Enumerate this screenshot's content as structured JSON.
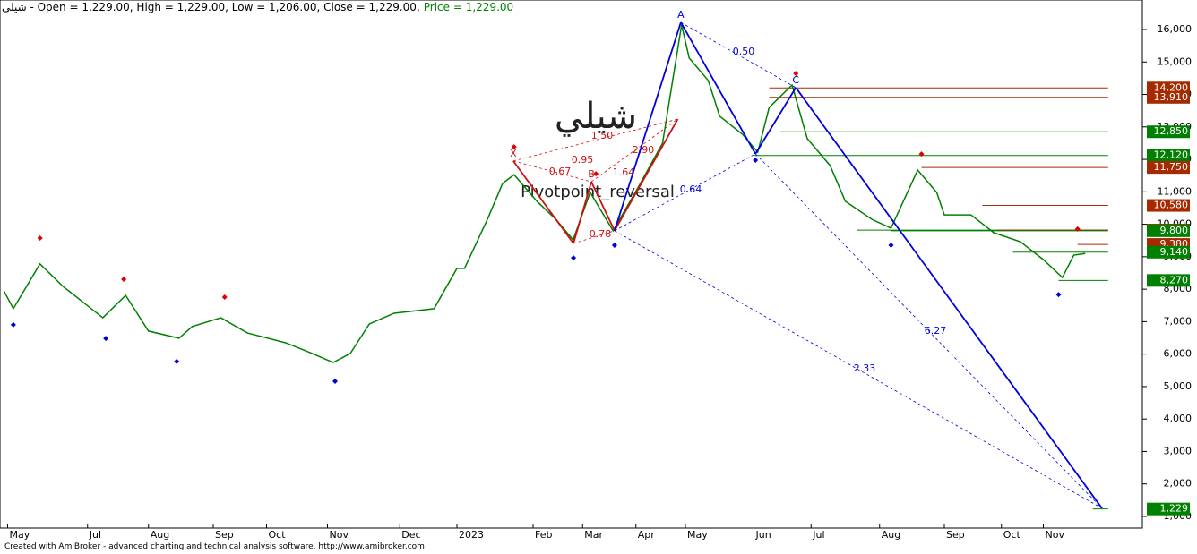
{
  "chart_data": {
    "type": "line",
    "title": "شيلي - Open = 1,229.00, High = 1,229.00, Low = 1,206.00, Close = 1,229.00,",
    "subtitle": "Price = 1,229.00",
    "watermark": "شيلي",
    "pattern_name": "Pivotpoint_reversal",
    "footer": "Created with AmiBroker - advanced charting and technical analysis software. http://www.amibroker.com",
    "xlim": [
      0,
      300
    ],
    "ylim": [
      641,
      16910
    ],
    "yticks": [
      {
        "value": 1000,
        "label": "1,000"
      },
      {
        "value": 2000,
        "label": "2,000"
      },
      {
        "value": 3000,
        "label": "3,000"
      },
      {
        "value": 4000,
        "label": "4,000"
      },
      {
        "value": 5000,
        "label": "5,000"
      },
      {
        "value": 6000,
        "label": "6,000"
      },
      {
        "value": 7000,
        "label": "7,000"
      },
      {
        "value": 8000,
        "label": "8,000"
      },
      {
        "value": 9000,
        "label": "9,000"
      },
      {
        "value": 10000,
        "label": "10,000"
      },
      {
        "value": 11000,
        "label": "11,000"
      },
      {
        "value": 12000,
        "label": "12,000"
      },
      {
        "value": 13000,
        "label": "13,000"
      },
      {
        "value": 14000,
        "label": "14,000"
      },
      {
        "value": 15000,
        "label": "15,000"
      },
      {
        "value": 16000,
        "label": "16,000"
      }
    ],
    "xticks": [
      {
        "value": 2,
        "label": "May"
      },
      {
        "value": 23,
        "label": "Jul"
      },
      {
        "value": 39,
        "label": "Aug"
      },
      {
        "value": 56,
        "label": "Sep"
      },
      {
        "value": 70,
        "label": "Oct"
      },
      {
        "value": 86,
        "label": "Nov"
      },
      {
        "value": 105,
        "label": "Dec"
      },
      {
        "value": 120,
        "label": "2023"
      },
      {
        "value": 140,
        "label": "Feb"
      },
      {
        "value": 153,
        "label": "Mar"
      },
      {
        "value": 167,
        "label": "Apr"
      },
      {
        "value": 180,
        "label": "May"
      },
      {
        "value": 198,
        "label": "Jun"
      },
      {
        "value": 213,
        "label": "Jul"
      },
      {
        "value": 231,
        "label": "Aug"
      },
      {
        "value": 248,
        "label": "Sep"
      },
      {
        "value": 263,
        "label": "Oct"
      },
      {
        "value": 274,
        "label": "Nov"
      }
    ],
    "series": [
      {
        "name": "Price",
        "color": "#008000",
        "x": [
          1,
          3.5,
          10.5,
          16.5,
          27,
          33,
          39,
          47,
          50.5,
          58,
          65,
          75,
          82,
          87.5,
          92,
          97,
          103.5,
          114,
          120,
          122,
          128,
          132,
          135,
          141,
          146,
          150.5,
          155,
          161,
          167.5,
          174,
          179,
          181,
          186,
          189,
          195,
          199,
          202,
          208,
          212,
          218,
          222,
          229,
          234,
          241,
          246,
          248,
          255,
          261,
          268,
          274,
          279,
          282,
          285
        ],
        "values": [
          7950,
          7400,
          8780,
          8090,
          7120,
          7810,
          6710,
          6490,
          6850,
          7120,
          6650,
          6350,
          6020,
          5740,
          6020,
          6930,
          7260,
          7400,
          8640,
          8640,
          10150,
          11260,
          11530,
          10710,
          10150,
          9520,
          10980,
          9800,
          11120,
          12500,
          16140,
          15120,
          14430,
          13330,
          12770,
          12220,
          13600,
          14290,
          12640,
          11810,
          10710,
          10150,
          9880,
          11670,
          10980,
          10290,
          10290,
          9740,
          9460,
          8910,
          8360,
          9050,
          9100
        ]
      }
    ],
    "pivot_highs": {
      "color": "#e00000",
      "x": [
        10.5,
        32.5,
        59,
        135,
        156.5,
        209,
        242,
        283
      ],
      "values": [
        9410,
        8140,
        7590,
        12220,
        11390,
        14480,
        12000,
        9690
      ]
    },
    "pivot_lows": {
      "color": "#0000e0",
      "x": [
        3.5,
        27.8,
        46.4,
        88,
        150.6,
        161.4,
        198.4,
        234,
        278
      ],
      "values": [
        7070,
        6650,
        5940,
        5330,
        9130,
        9520,
        12140,
        9520,
        8000
      ]
    },
    "patterns": [
      {
        "color": "#d01010",
        "points": [
          {
            "label": "X",
            "x": 134.8,
            "value": 11950
          },
          {
            "label": null,
            "x": 150.6,
            "value": 9410
          },
          {
            "label": "B",
            "x": 155.3,
            "value": 11310
          },
          {
            "label": null,
            "x": 161.4,
            "value": 9800
          },
          {
            "label": null,
            "x": 178,
            "value": 13240
          }
        ],
        "ratios": [
          "1.50",
          "0.67",
          "0.95",
          "1.64",
          "2.90",
          "0.78"
        ]
      },
      {
        "color": "#0000e0",
        "points": [
          {
            "label": null,
            "x": 161.4,
            "value": 9800
          },
          {
            "label": "A",
            "x": 178.8,
            "value": 16220
          },
          {
            "label": null,
            "x": 198.4,
            "value": 12170
          },
          {
            "label": "C",
            "x": 209,
            "value": 14210
          },
          {
            "label": null,
            "x": 289.4,
            "value": 1250
          }
        ],
        "ratios": [
          "0.50",
          "0.64",
          "6.27",
          "2.33"
        ]
      }
    ],
    "levels": [
      {
        "value": 14200,
        "label": "14,200",
        "color": "#a52a00",
        "from": 202
      },
      {
        "value": 13910,
        "label": "13,910",
        "color": "#a52a00",
        "from": 202
      },
      {
        "value": 12850,
        "label": "12,850",
        "color": "#008000",
        "from": 205
      },
      {
        "value": 12120,
        "label": "12,120",
        "color": "#008000",
        "from": 198
      },
      {
        "value": 11750,
        "label": "11,750",
        "color": "#a52a00",
        "from": 242
      },
      {
        "value": 10580,
        "label": "10,580",
        "color": "#a52a00",
        "from": 258
      },
      {
        "value": 9820,
        "label": "9,820",
        "color": "#008000",
        "from": 225
      },
      {
        "value": 9820,
        "label": "9,820",
        "color": "#a52a00",
        "from": 262
      },
      {
        "value": 9800,
        "label": "9,800",
        "color": "#008000",
        "from": 234
      },
      {
        "value": 9380,
        "label": "9,380",
        "color": "#a52a00",
        "from": 283
      },
      {
        "value": 9140,
        "label": "9,140",
        "color": "#008000",
        "from": 266
      },
      {
        "value": 8270,
        "label": "8,270",
        "color": "#008000",
        "from": 278
      },
      {
        "value": 1229,
        "label": "1,229",
        "color": "#008000",
        "from": 287
      }
    ]
  }
}
